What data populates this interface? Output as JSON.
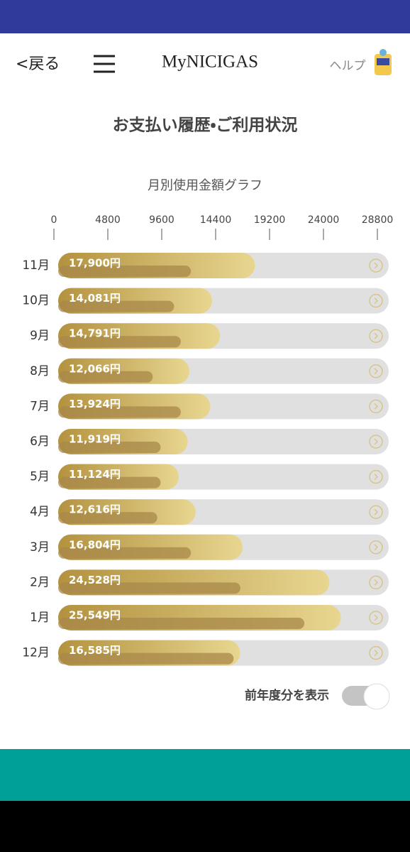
{
  "header": {
    "back": "<戻る",
    "logo": "MyNICIGAS",
    "help": "ヘルプ"
  },
  "page_title": "お支払い履歴・ご利用状況",
  "chart_data": {
    "type": "bar",
    "orientation": "horizontal",
    "title": "月別使用金額グラフ",
    "categories": [
      "11月",
      "10月",
      "9月",
      "8月",
      "7月",
      "6月",
      "5月",
      "4月",
      "3月",
      "2月",
      "1月",
      "12月"
    ],
    "series": [
      {
        "color": "#c9ab5c",
        "values": [
          17900,
          14081,
          14791,
          12066,
          13924,
          11919,
          11124,
          12616,
          16804,
          24528,
          25549,
          16585
        ],
        "value_labels": [
          "17,900円",
          "14,081円",
          "14,791円",
          "12,066円",
          "13,924円",
          "11,919円",
          "11,124円",
          "12,616円",
          "16,804円",
          "24,528円",
          "25,549円",
          "16,585円"
        ]
      },
      {
        "color": "#a8884a",
        "values": [
          12200,
          10700,
          11300,
          8800,
          11300,
          9500,
          9500,
          9200,
          12200,
          16600,
          22300,
          16000
        ]
      }
    ],
    "xlim": [
      0,
      28800
    ],
    "xticks": [
      0,
      4800,
      9600,
      14400,
      19200,
      24000,
      28800
    ]
  },
  "toggle_label": "前年度分を表示"
}
